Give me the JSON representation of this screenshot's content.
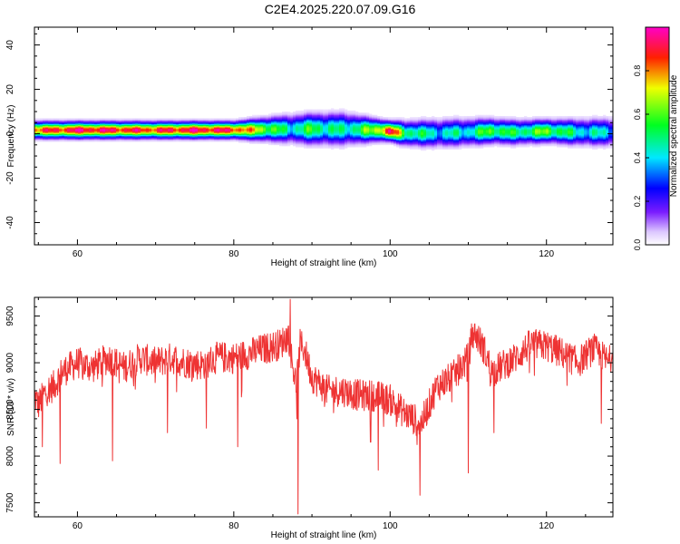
{
  "title": "C2E4.2025.220.07.09.G16",
  "colors": {
    "snr_line": "#ee3333",
    "axis": "#000000",
    "spectrogram_background": "#ffffff"
  },
  "chart_data": [
    {
      "type": "heatmap",
      "xlabel": "Height of straight line (km)",
      "ylabel": "Frequency (Hz)",
      "xlim": [
        54.5,
        128.5
      ],
      "ylim": [
        -50,
        48
      ],
      "xticks": [
        60,
        80,
        100,
        120
      ],
      "yticks": [
        -40,
        -20,
        0,
        20,
        40
      ],
      "grid": false,
      "colorbar": {
        "label": "Normalized spectral amplitude",
        "range": [
          0,
          1
        ],
        "ticks": [
          "0.0",
          "0.2",
          "0.4",
          "0.6",
          "0.8"
        ],
        "colormap": "rainbow (white/violet at 0 → blue → cyan → green → yellow → red → magenta at 1)"
      },
      "band": [
        {
          "x": 55,
          "center": 1.5,
          "halfwidth": 2.2,
          "peak": 0.85
        },
        {
          "x": 60,
          "center": 1.5,
          "halfwidth": 2.2,
          "peak": 0.95
        },
        {
          "x": 65,
          "center": 1.5,
          "halfwidth": 2.2,
          "peak": 0.92
        },
        {
          "x": 70,
          "center": 1.5,
          "halfwidth": 2.2,
          "peak": 0.88
        },
        {
          "x": 75,
          "center": 1.5,
          "halfwidth": 2.2,
          "peak": 0.95
        },
        {
          "x": 80,
          "center": 1.5,
          "halfwidth": 2.2,
          "peak": 0.9
        },
        {
          "x": 84,
          "center": 1.8,
          "halfwidth": 3.0,
          "peak": 0.65
        },
        {
          "x": 87,
          "center": 2.0,
          "halfwidth": 3.6,
          "peak": 0.45
        },
        {
          "x": 90,
          "center": 2.0,
          "halfwidth": 4.0,
          "peak": 0.55
        },
        {
          "x": 94,
          "center": 2.0,
          "halfwidth": 4.2,
          "peak": 0.45
        },
        {
          "x": 98,
          "center": 1.5,
          "halfwidth": 3.0,
          "peak": 0.65
        },
        {
          "x": 100,
          "center": 1.0,
          "halfwidth": 2.5,
          "peak": 0.95
        },
        {
          "x": 102,
          "center": 0.0,
          "halfwidth": 3.2,
          "peak": 0.55
        },
        {
          "x": 106,
          "center": 0.0,
          "halfwidth": 3.6,
          "peak": 0.42
        },
        {
          "x": 110,
          "center": 0.5,
          "halfwidth": 3.5,
          "peak": 0.45
        },
        {
          "x": 113,
          "center": 1.0,
          "halfwidth": 3.2,
          "peak": 0.6
        },
        {
          "x": 116,
          "center": 0.5,
          "halfwidth": 3.2,
          "peak": 0.5
        },
        {
          "x": 120,
          "center": 1.0,
          "halfwidth": 3.0,
          "peak": 0.62
        },
        {
          "x": 124,
          "center": 0.5,
          "halfwidth": 3.4,
          "peak": 0.45
        },
        {
          "x": 128.5,
          "center": 0.5,
          "halfwidth": 3.6,
          "peak": 0.4
        }
      ]
    },
    {
      "type": "line",
      "xlabel": "Height of straight line (km)",
      "ylabel": "SNR (10 * v/v)",
      "xlim": [
        54.5,
        128.5
      ],
      "ylim": [
        7350,
        9700
      ],
      "xticks": [
        60,
        80,
        100,
        120
      ],
      "yticks": [
        7500,
        8000,
        8500,
        9000,
        9500
      ],
      "grid": false,
      "series": [
        {
          "x": [
            54.5,
            55,
            56,
            57,
            58,
            59,
            60,
            62,
            64,
            66,
            68,
            70,
            72,
            74,
            76,
            78,
            80,
            82,
            84,
            86,
            87,
            87.5,
            88,
            88.5,
            89,
            90,
            92,
            94,
            96,
            98,
            100,
            102,
            103,
            104,
            105,
            106,
            108,
            110,
            110.5,
            111,
            112,
            113,
            114,
            116,
            118,
            120,
            122,
            124,
            126,
            128,
            128.5
          ],
          "y": [
            8650,
            8550,
            8700,
            8750,
            8900,
            8950,
            9000,
            8950,
            9050,
            8950,
            9050,
            9000,
            9050,
            9000,
            8980,
            9060,
            9050,
            9100,
            9150,
            9200,
            9300,
            9000,
            8750,
            9200,
            9150,
            8850,
            8700,
            8700,
            8650,
            8650,
            8600,
            8450,
            8400,
            8350,
            8550,
            8750,
            8850,
            9050,
            9300,
            9300,
            9150,
            8900,
            8950,
            9050,
            9200,
            9180,
            9100,
            9000,
            9150,
            9000,
            9150
          ],
          "dips": [
            {
              "x": 55.5,
              "y": 8100
            },
            {
              "x": 57.8,
              "y": 7920
            },
            {
              "x": 64.5,
              "y": 7950
            },
            {
              "x": 71.5,
              "y": 8250
            },
            {
              "x": 76.5,
              "y": 8300
            },
            {
              "x": 80.5,
              "y": 8100
            },
            {
              "x": 87.2,
              "y": 9680
            },
            {
              "x": 88.2,
              "y": 7380
            },
            {
              "x": 97.5,
              "y": 8150
            },
            {
              "x": 98.5,
              "y": 7850
            },
            {
              "x": 103.8,
              "y": 7580
            },
            {
              "x": 110.0,
              "y": 7820
            },
            {
              "x": 113.3,
              "y": 8250
            },
            {
              "x": 127.0,
              "y": 8350
            }
          ],
          "noise_amplitude": 170
        }
      ]
    }
  ]
}
